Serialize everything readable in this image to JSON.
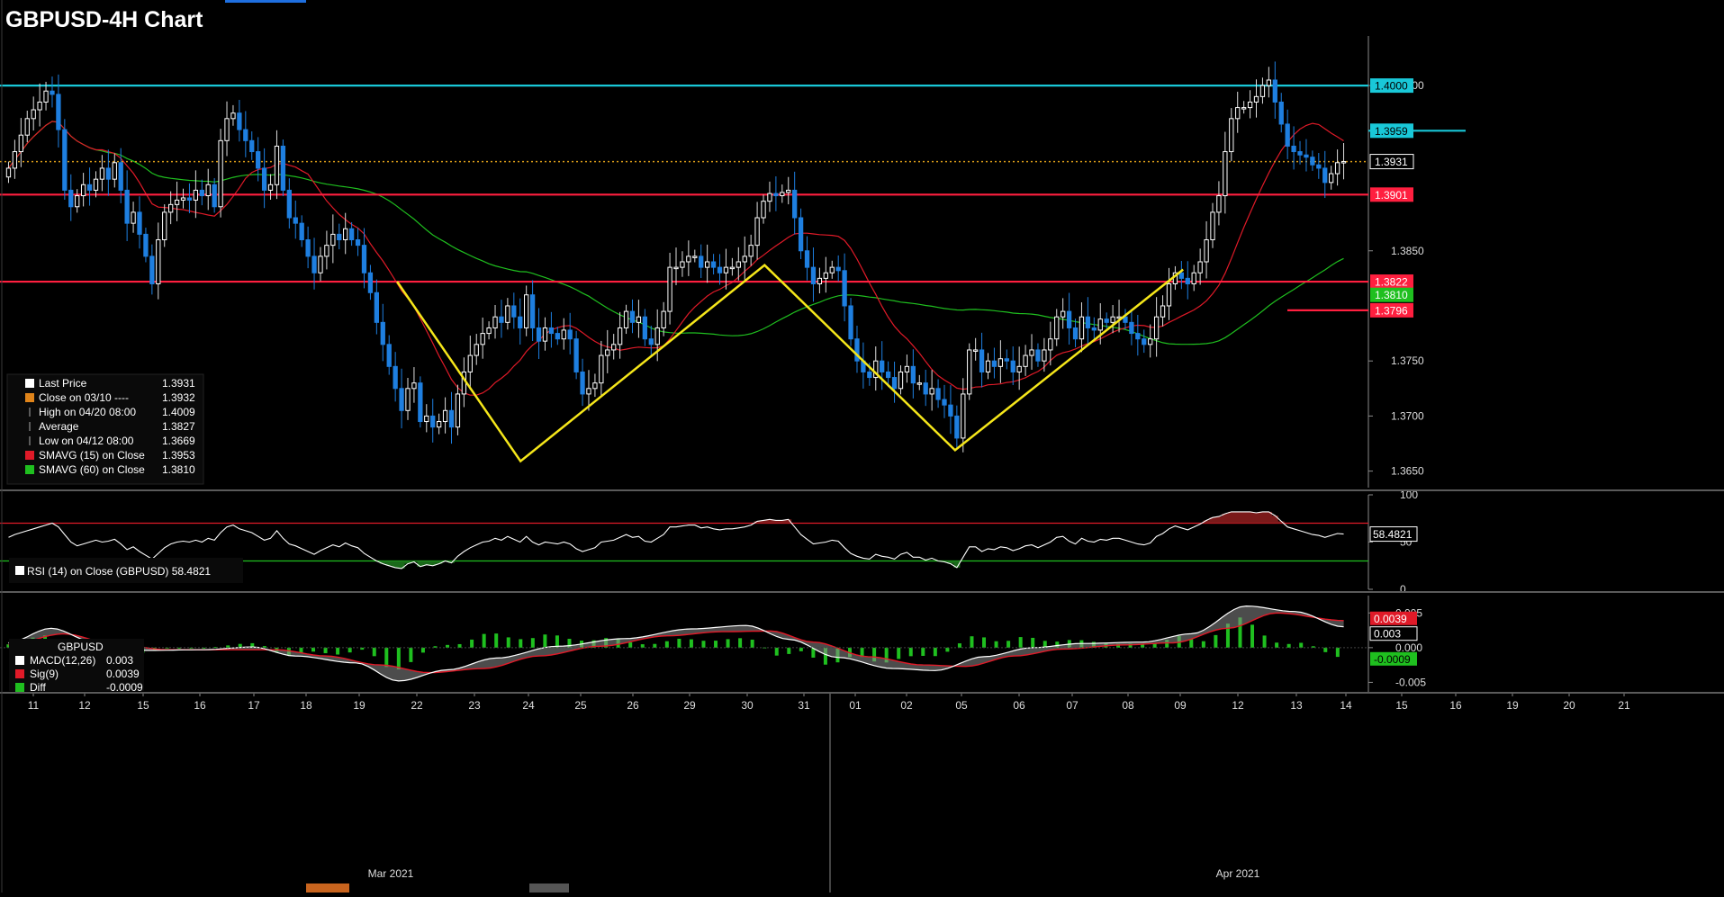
{
  "title": "GBPUSD-4H Chart",
  "colors": {
    "background": "#000000",
    "up_candle": "#ffffff",
    "down_candle": "#1e7fe0",
    "sma15": "#e01a28",
    "sma60": "#1fbf1f",
    "support_resistance": "#ff1f3f",
    "resistance_top": "#19c8d8",
    "pattern": "#f5e61a",
    "last_price_line": "#d89a18"
  },
  "chart_data": [
    {
      "type": "candlestick",
      "name": "price",
      "ylim": [
        1.3635,
        1.4045
      ],
      "yticks": [
        "1.3650",
        "1.3700",
        "1.3750",
        "1.3850",
        "1.4000"
      ],
      "x_ticks": [
        "11",
        "12",
        "15",
        "16",
        "17",
        "18",
        "19",
        "22",
        "23",
        "24",
        "25",
        "26",
        "29",
        "30",
        "31",
        "01",
        "02",
        "05",
        "06",
        "07",
        "08",
        "09",
        "12",
        "13",
        "14",
        "15",
        "16",
        "19",
        "20",
        "21"
      ],
      "month_labels": [
        "Mar 2021",
        "Apr 2021"
      ],
      "close_series": [
        1.3925,
        1.394,
        1.3955,
        1.397,
        1.3978,
        1.3985,
        1.3995,
        1.3992,
        1.396,
        1.3905,
        1.389,
        1.39,
        1.391,
        1.3905,
        1.3915,
        1.3925,
        1.3915,
        1.393,
        1.3905,
        1.3875,
        1.3885,
        1.3865,
        1.3845,
        1.382,
        1.386,
        1.3885,
        1.3892,
        1.3896,
        1.3898,
        1.3896,
        1.3905,
        1.39,
        1.391,
        1.389,
        1.395,
        1.397,
        1.3975,
        1.396,
        1.395,
        1.394,
        1.3925,
        1.3905,
        1.391,
        1.3945,
        1.3905,
        1.388,
        1.3875,
        1.386,
        1.3845,
        1.383,
        1.3845,
        1.3855,
        1.3865,
        1.386,
        1.387,
        1.386,
        1.3855,
        1.383,
        1.3812,
        1.3785,
        1.3765,
        1.3745,
        1.3725,
        1.3705,
        1.3725,
        1.373,
        1.3695,
        1.37,
        1.369,
        1.3695,
        1.3705,
        1.369,
        1.372,
        1.374,
        1.3755,
        1.3765,
        1.3775,
        1.378,
        1.379,
        1.3785,
        1.38,
        1.379,
        1.378,
        1.381,
        1.378,
        1.3768,
        1.378,
        1.3775,
        1.377,
        1.3778,
        1.377,
        1.374,
        1.372,
        1.3725,
        1.373,
        1.3755,
        1.376,
        1.3765,
        1.378,
        1.3795,
        1.3785,
        1.379,
        1.377,
        1.3765,
        1.378,
        1.3795,
        1.3835,
        1.3835,
        1.384,
        1.3845,
        1.3845,
        1.3835,
        1.384,
        1.3835,
        1.383,
        1.3835,
        1.3835,
        1.384,
        1.3845,
        1.3855,
        1.388,
        1.3895,
        1.3902,
        1.39,
        1.3903,
        1.3905,
        1.388,
        1.385,
        1.3835,
        1.382,
        1.3825,
        1.383,
        1.3835,
        1.3832,
        1.38,
        1.377,
        1.375,
        1.374,
        1.3735,
        1.375,
        1.374,
        1.3735,
        1.3725,
        1.374,
        1.3745,
        1.373,
        1.373,
        1.372,
        1.3725,
        1.3715,
        1.371,
        1.37,
        1.368,
        1.372,
        1.376,
        1.376,
        1.374,
        1.375,
        1.3745,
        1.3752,
        1.375,
        1.374,
        1.3745,
        1.3755,
        1.376,
        1.375,
        1.376,
        1.377,
        1.379,
        1.3795,
        1.378,
        1.377,
        1.379,
        1.378,
        1.3778,
        1.3788,
        1.3785,
        1.379,
        1.379,
        1.3785,
        1.3775,
        1.377,
        1.3765,
        1.377,
        1.379,
        1.38,
        1.382,
        1.383,
        1.3825,
        1.382,
        1.383,
        1.384,
        1.386,
        1.3885,
        1.39,
        1.394,
        1.397,
        1.398,
        1.398,
        1.3985,
        1.399,
        1.4,
        1.4005,
        1.3985,
        1.3965,
        1.3945,
        1.394,
        1.3937,
        1.3935,
        1.3928,
        1.3925,
        1.3912,
        1.392,
        1.393,
        1.3931
      ],
      "horizontal_levels": [
        {
          "value": 1.4,
          "label": "1.4000",
          "color": "#19c8d8",
          "scope": "full"
        },
        {
          "value": 1.3959,
          "label": "1.3959",
          "color": "#19c8d8",
          "scope": "right"
        },
        {
          "value": 1.3931,
          "label": "1.3931",
          "color": "#d89a18",
          "scope": "full",
          "dotted": true
        },
        {
          "value": 1.3901,
          "label": "1.3901",
          "color": "#ff1f3f",
          "scope": "full"
        },
        {
          "value": 1.3822,
          "label": "1.3822",
          "color": "#ff1f3f",
          "scope": "full"
        },
        {
          "value": 1.3796,
          "label": "1.3796",
          "color": "#ff1f3f",
          "scope": "right-mid"
        }
      ],
      "sma_tags": [
        {
          "label": "1.3810",
          "value": 1.381,
          "color": "#1fbf1f"
        }
      ],
      "pattern_points": [
        [
          1.3822,
          0.292
        ],
        [
          1.3659,
          0.384
        ],
        [
          1.3837,
          0.566
        ],
        [
          1.3669,
          0.708
        ],
        [
          1.3833,
          0.878
        ]
      ],
      "legend": [
        {
          "swatch": "#ffffff",
          "label": "Last Price",
          "value": "1.3931"
        },
        {
          "swatch": "#e0841a",
          "label": "Close on 03/10 ----",
          "value": "1.3932"
        },
        {
          "swatch": "none",
          "label": "High on 04/20 08:00",
          "value": "1.4009"
        },
        {
          "swatch": "none",
          "label": "Average",
          "value": "1.3827"
        },
        {
          "swatch": "none",
          "label": "Low on 04/12 08:00",
          "value": "1.3669"
        },
        {
          "swatch": "#e01a28",
          "label": "SMAVG (15)  on Close",
          "value": "1.3953"
        },
        {
          "swatch": "#1fbf1f",
          "label": "SMAVG (60)  on Close",
          "value": "1.3810"
        }
      ]
    },
    {
      "type": "line",
      "name": "rsi",
      "ylim": [
        0,
        100
      ],
      "yticks": [
        "100",
        "50",
        "0"
      ],
      "levels": [
        70,
        30
      ],
      "value_tag": "58.4821",
      "legend_label": "RSI (14)  on Close (GBPUSD) 58.4821",
      "values": [
        55,
        58,
        60,
        62,
        64,
        66,
        68,
        70,
        66,
        58,
        50,
        46,
        48,
        50,
        52,
        50,
        51,
        53,
        48,
        42,
        45,
        40,
        36,
        32,
        38,
        44,
        48,
        50,
        51,
        50,
        52,
        50,
        54,
        52,
        60,
        66,
        68,
        64,
        62,
        60,
        56,
        52,
        54,
        62,
        54,
        48,
        46,
        43,
        40,
        37,
        41,
        44,
        47,
        45,
        49,
        46,
        44,
        38,
        34,
        30,
        27,
        25,
        23,
        22,
        27,
        29,
        24,
        26,
        25,
        27,
        30,
        28,
        35,
        40,
        44,
        47,
        50,
        51,
        54,
        52,
        56,
        53,
        50,
        56,
        50,
        47,
        50,
        49,
        48,
        50,
        48,
        43,
        40,
        42,
        44,
        50,
        51,
        52,
        55,
        58,
        55,
        56,
        51,
        50,
        54,
        58,
        66,
        66,
        67,
        68,
        68,
        65,
        66,
        64,
        63,
        64,
        64,
        65,
        66,
        68,
        72,
        73,
        74,
        73,
        73,
        74,
        66,
        58,
        53,
        48,
        49,
        50,
        52,
        51,
        44,
        38,
        35,
        33,
        32,
        37,
        35,
        34,
        32,
        37,
        39,
        34,
        34,
        31,
        33,
        30,
        29,
        27,
        23,
        34,
        45,
        45,
        40,
        43,
        42,
        45,
        44,
        41,
        43,
        46,
        47,
        44,
        47,
        50,
        55,
        56,
        51,
        48,
        54,
        51,
        50,
        53,
        52,
        54,
        54,
        52,
        50,
        48,
        47,
        49,
        56,
        59,
        64,
        67,
        65,
        63,
        66,
        69,
        73,
        76,
        77,
        80,
        82,
        82,
        82,
        82,
        81,
        82,
        82,
        78,
        72,
        66,
        64,
        62,
        60,
        58,
        57,
        55,
        57,
        59,
        58.5
      ]
    },
    {
      "type": "line",
      "name": "macd",
      "ylim": [
        -0.0065,
        0.0075
      ],
      "yticks": [
        "0.005",
        "0.000",
        "-0.005"
      ],
      "value_tags": [
        {
          "label": "0.0039",
          "color": "#e01a28"
        },
        {
          "label": "0.003",
          "color": "#ffffff"
        },
        {
          "label": "-0.0009",
          "color": "#1fbf1f"
        }
      ],
      "macd_anchors": [
        [
          0,
          0.0007
        ],
        [
          7,
          0.0028
        ],
        [
          14,
          0.0008
        ],
        [
          22,
          -0.0004
        ],
        [
          32,
          -0.0003
        ],
        [
          40,
          0.0001
        ],
        [
          47,
          -0.0012
        ],
        [
          57,
          -0.0022
        ],
        [
          64,
          -0.0048
        ],
        [
          72,
          -0.0032
        ],
        [
          80,
          -0.0015
        ],
        [
          90,
          0.0002
        ],
        [
          101,
          0.0013
        ],
        [
          112,
          0.0027
        ],
        [
          121,
          0.0032
        ],
        [
          128,
          0.0012
        ],
        [
          136,
          -0.0014
        ],
        [
          145,
          -0.003
        ],
        [
          152,
          -0.0033
        ],
        [
          160,
          -0.0013
        ],
        [
          168,
          0.0
        ],
        [
          176,
          0.0006
        ],
        [
          186,
          0.0008
        ],
        [
          194,
          0.002
        ],
        [
          203,
          0.006
        ],
        [
          211,
          0.0052
        ],
        [
          219,
          0.003
        ]
      ],
      "sig_anchors": [
        [
          0,
          0.0004
        ],
        [
          9,
          0.002
        ],
        [
          17,
          0.0006
        ],
        [
          26,
          -0.0003
        ],
        [
          35,
          -0.0003
        ],
        [
          44,
          -0.0003
        ],
        [
          52,
          -0.0012
        ],
        [
          61,
          -0.0025
        ],
        [
          69,
          -0.0036
        ],
        [
          78,
          -0.003
        ],
        [
          87,
          -0.0012
        ],
        [
          97,
          0.0002
        ],
        [
          108,
          0.0017
        ],
        [
          117,
          0.0023
        ],
        [
          125,
          0.0024
        ],
        [
          132,
          0.0008
        ],
        [
          141,
          -0.0013
        ],
        [
          150,
          -0.0025
        ],
        [
          157,
          -0.0027
        ],
        [
          165,
          -0.0012
        ],
        [
          173,
          -0.0002
        ],
        [
          183,
          0.0004
        ],
        [
          191,
          0.0007
        ],
        [
          200,
          0.0028
        ],
        [
          208,
          0.005
        ],
        [
          219,
          0.0039
        ]
      ],
      "legend_title": "GBPUSD",
      "legend": [
        {
          "swatch": "#ffffff",
          "label": "MACD(12,26)",
          "value": "0.003"
        },
        {
          "swatch": "#e01a28",
          "label": "Sig(9)",
          "value": "0.0039"
        },
        {
          "swatch": "#1fbf1f",
          "label": "Diff",
          "value": "-0.0009"
        }
      ]
    }
  ]
}
